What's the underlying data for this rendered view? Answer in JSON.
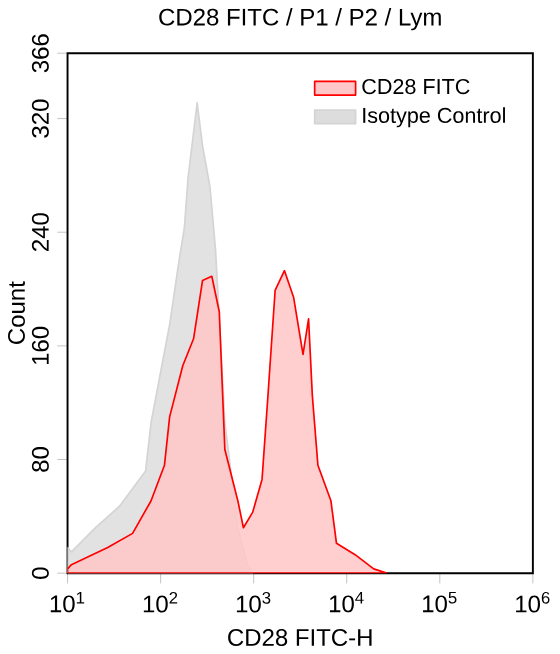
{
  "chart_data": {
    "type": "area",
    "title": "CD28 FITC / P1 / P2 / Lym",
    "xlabel": "CD28 FITC-H",
    "ylabel": "Count",
    "log": "x",
    "legend": "top right",
    "grid": false,
    "marker": "none",
    "xlim": [
      10,
      1000000
    ],
    "ylim": [
      0,
      366
    ],
    "xticks": [
      {
        "value": 10,
        "label": "10$^{1}$"
      },
      {
        "value": 100,
        "label": "10$^{2}$"
      },
      {
        "value": 1000,
        "label": "10$^{3}$"
      },
      {
        "value": 10000,
        "label": "10$^{4}$"
      },
      {
        "value": 100000,
        "label": "10$^{5}$"
      },
      {
        "value": 1000000,
        "label": "10$^{6}$"
      }
    ],
    "yticks": [
      0,
      80,
      160,
      240,
      320,
      366
    ],
    "series": [
      {
        "name": "CD28 FITC",
        "color": "#ff0000",
        "x": [
          10,
          11,
          27,
          50,
          79,
          110,
          125,
          173,
          226,
          282,
          355,
          427,
          490,
          676,
          776,
          977,
          1230,
          1410,
          1700,
          2140,
          2690,
          3390,
          3890,
          4270,
          4900,
          6760,
          7760,
          12300,
          19500,
          26900
        ],
        "values": [
          3,
          6,
          18,
          28,
          51,
          76,
          110,
          146,
          165,
          206,
          209,
          184,
          87,
          51,
          32,
          43,
          66,
          121,
          199,
          213,
          194,
          154,
          179,
          125,
          76,
          51,
          21,
          13,
          3,
          0
        ]
      },
      {
        "name": "Isotype Control",
        "color": "#d4d4d4",
        "x": [
          10,
          11,
          20,
          36,
          69,
          79,
          99,
          125,
          157,
          180,
          197,
          247,
          282,
          339,
          389,
          427,
          490,
          676,
          855,
          977
        ],
        "values": [
          18,
          15,
          32,
          47,
          72,
          106,
          140,
          175,
          219,
          243,
          278,
          331,
          301,
          272,
          228,
          179,
          106,
          32,
          6,
          0
        ]
      }
    ]
  }
}
